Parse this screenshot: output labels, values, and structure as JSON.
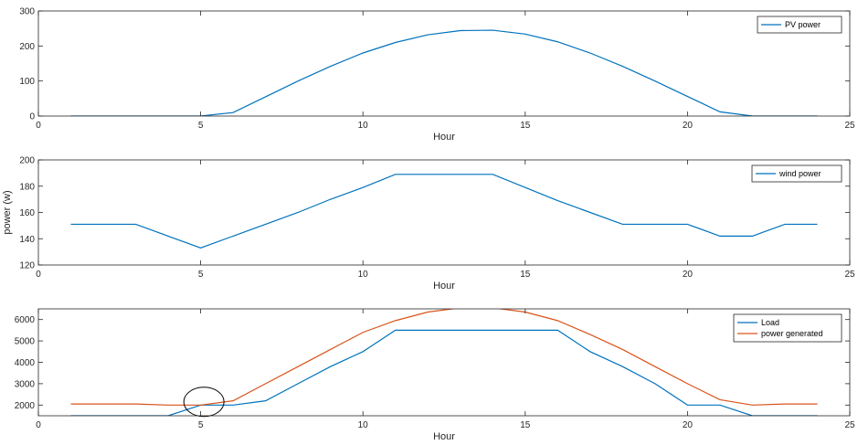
{
  "colors": {
    "blue": "#0072BD",
    "orange": "#D95319",
    "axis": "#262626",
    "annotation": "#000000"
  },
  "chart_data": [
    {
      "type": "line",
      "xlabel": "Hour",
      "ylabel": "",
      "xlim": [
        0,
        25
      ],
      "ylim": [
        0,
        300
      ],
      "xticks": [
        0,
        5,
        10,
        15,
        20,
        25
      ],
      "yticks": [
        0,
        100,
        200,
        300
      ],
      "grid": false,
      "legend": "top-right",
      "series": [
        {
          "name": "PV power",
          "color": "#0072BD",
          "x": [
            1,
            2,
            3,
            4,
            5,
            6,
            7,
            8,
            9,
            10,
            11,
            12,
            13,
            14,
            15,
            16,
            17,
            18,
            19,
            20,
            21,
            22,
            23,
            24
          ],
          "values": [
            0,
            0,
            0,
            0,
            0,
            10,
            55,
            100,
            142,
            180,
            210,
            232,
            244,
            245,
            234,
            212,
            180,
            142,
            100,
            56,
            12,
            0,
            0,
            0
          ]
        }
      ]
    },
    {
      "type": "line",
      "xlabel": "Hour",
      "ylabel": "power (w)",
      "xlim": [
        0,
        25
      ],
      "ylim": [
        120,
        200
      ],
      "xticks": [
        0,
        5,
        10,
        15,
        20,
        25
      ],
      "yticks": [
        120,
        140,
        160,
        180,
        200
      ],
      "grid": false,
      "legend": "top-right",
      "series": [
        {
          "name": "wind power",
          "color": "#0072BD",
          "x": [
            1,
            2,
            3,
            4,
            5,
            6,
            7,
            8,
            9,
            10,
            11,
            12,
            13,
            14,
            15,
            16,
            17,
            18,
            19,
            20,
            21,
            22,
            23,
            24
          ],
          "values": [
            151,
            151,
            151,
            142,
            133,
            142,
            151,
            160,
            170,
            179,
            189,
            189,
            189,
            189,
            179,
            169,
            160,
            151,
            151,
            151,
            142,
            142,
            151,
            151
          ]
        }
      ]
    },
    {
      "type": "line",
      "xlabel": "Hour",
      "ylabel": "",
      "xlim": [
        0,
        25
      ],
      "ylim": [
        1500,
        6500
      ],
      "xticks": [
        0,
        5,
        10,
        15,
        20,
        25
      ],
      "yticks": [
        2000,
        3000,
        4000,
        5000,
        6000
      ],
      "grid": false,
      "legend": "top-right",
      "series": [
        {
          "name": "Load",
          "color": "#0072BD",
          "x": [
            1,
            2,
            3,
            4,
            5,
            6,
            7,
            8,
            9,
            10,
            11,
            12,
            13,
            14,
            15,
            16,
            17,
            18,
            19,
            20,
            21,
            22,
            23,
            24
          ],
          "values": [
            1500,
            1500,
            1500,
            1500,
            2000,
            2000,
            2200,
            3000,
            3800,
            4500,
            5500,
            5500,
            5500,
            5500,
            5500,
            5500,
            4500,
            3800,
            3000,
            2000,
            2000,
            1500,
            1500,
            1500
          ]
        },
        {
          "name": "power generated",
          "color": "#D95319",
          "x": [
            1,
            2,
            3,
            4,
            5,
            6,
            7,
            8,
            9,
            10,
            11,
            12,
            13,
            14,
            15,
            16,
            17,
            18,
            19,
            20,
            21,
            22,
            23,
            24
          ],
          "values": [
            2050,
            2050,
            2050,
            2000,
            2000,
            2200,
            3000,
            3800,
            4600,
            5400,
            5950,
            6350,
            6550,
            6550,
            6350,
            5950,
            5300,
            4600,
            3800,
            3000,
            2250,
            2000,
            2050,
            2050
          ]
        }
      ],
      "annotation": {
        "shape": "ellipse",
        "x": 5.1,
        "y": 2150
      }
    }
  ]
}
